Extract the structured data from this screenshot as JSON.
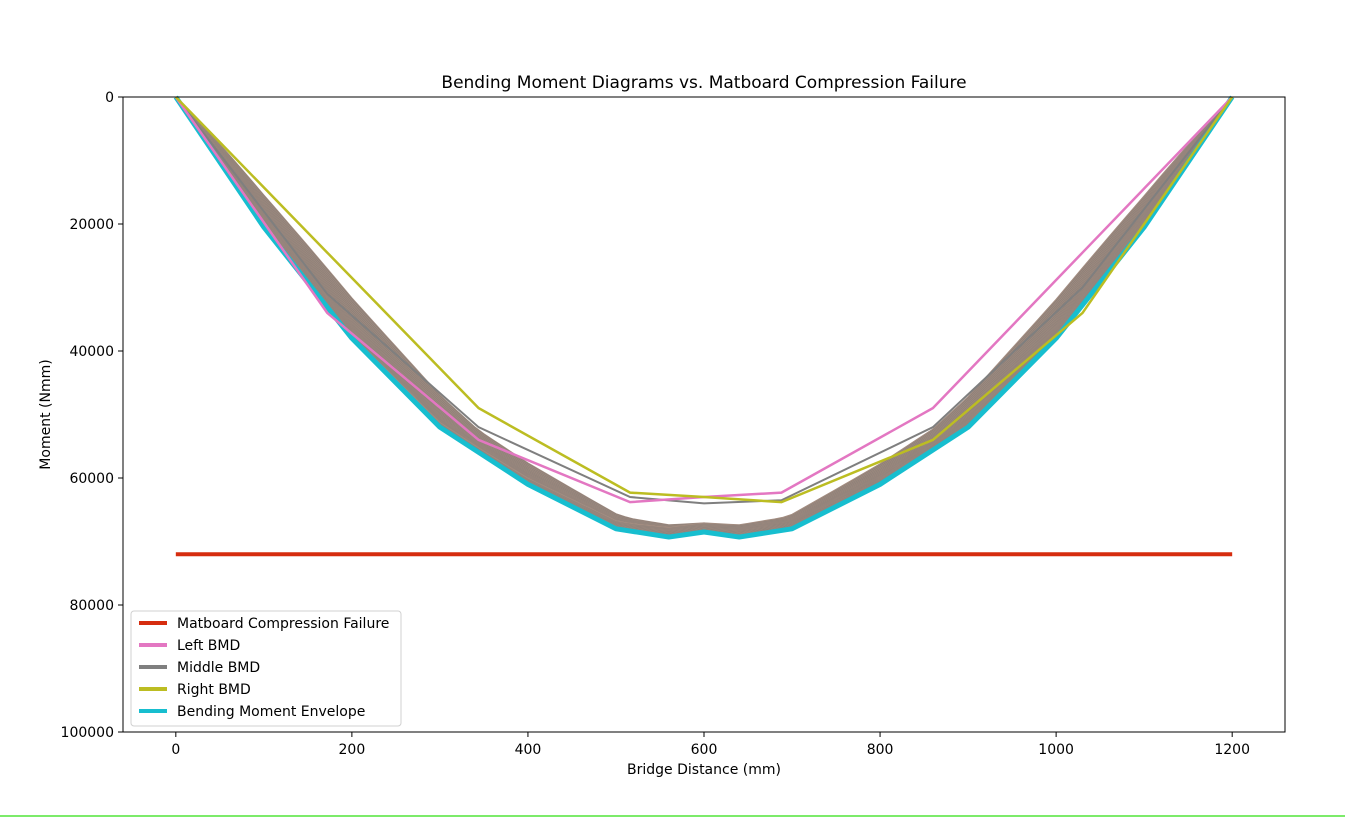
{
  "chart_data": {
    "type": "line",
    "title": "Bending Moment Diagrams vs. Matboard Compression Failure",
    "xlabel": "Bridge Distance (mm)",
    "ylabel": "Moment (Nmm)",
    "xlim": [
      -60,
      1260
    ],
    "ylim": [
      100000,
      0
    ],
    "y_inverted": true,
    "xticks": [
      0,
      200,
      400,
      600,
      800,
      1000,
      1200
    ],
    "yticks": [
      0,
      20000,
      40000,
      60000,
      80000,
      100000
    ],
    "grid": false,
    "legend_position": "lower-left",
    "series": [
      {
        "name": "Matboard Compression Failure",
        "color": "#d62d0f",
        "x": [
          0,
          1200
        ],
        "y": [
          72000,
          72000
        ]
      },
      {
        "name": "Left BMD",
        "color": "#e377c2",
        "x": [
          0,
          172,
          344,
          516,
          600,
          688,
          860,
          1030,
          1200
        ],
        "y": [
          0,
          34000,
          54000,
          63800,
          63000,
          62300,
          49000,
          24500,
          0
        ]
      },
      {
        "name": "Middle BMD",
        "color": "#7f7f7f",
        "x": [
          0,
          172,
          344,
          516,
          600,
          688,
          860,
          1030,
          1200
        ],
        "y": [
          0,
          31000,
          52000,
          63000,
          64000,
          63500,
          52000,
          30000,
          0
        ]
      },
      {
        "name": "Right BMD",
        "color": "#bcbd22",
        "x": [
          0,
          172,
          344,
          516,
          600,
          688,
          860,
          1030,
          1200
        ],
        "y": [
          0,
          24500,
          49000,
          62300,
          63000,
          63800,
          54000,
          34000,
          0
        ]
      },
      {
        "name": "Bending Moment Envelope",
        "color": "#17becf",
        "x": [
          0,
          100,
          200,
          300,
          400,
          500,
          560,
          600,
          640,
          700,
          800,
          900,
          1000,
          1100,
          1200
        ],
        "y": [
          0,
          20500,
          38000,
          52000,
          61000,
          68000,
          69300,
          68500,
          69300,
          68000,
          61000,
          52000,
          38000,
          20500,
          0
        ]
      }
    ]
  }
}
